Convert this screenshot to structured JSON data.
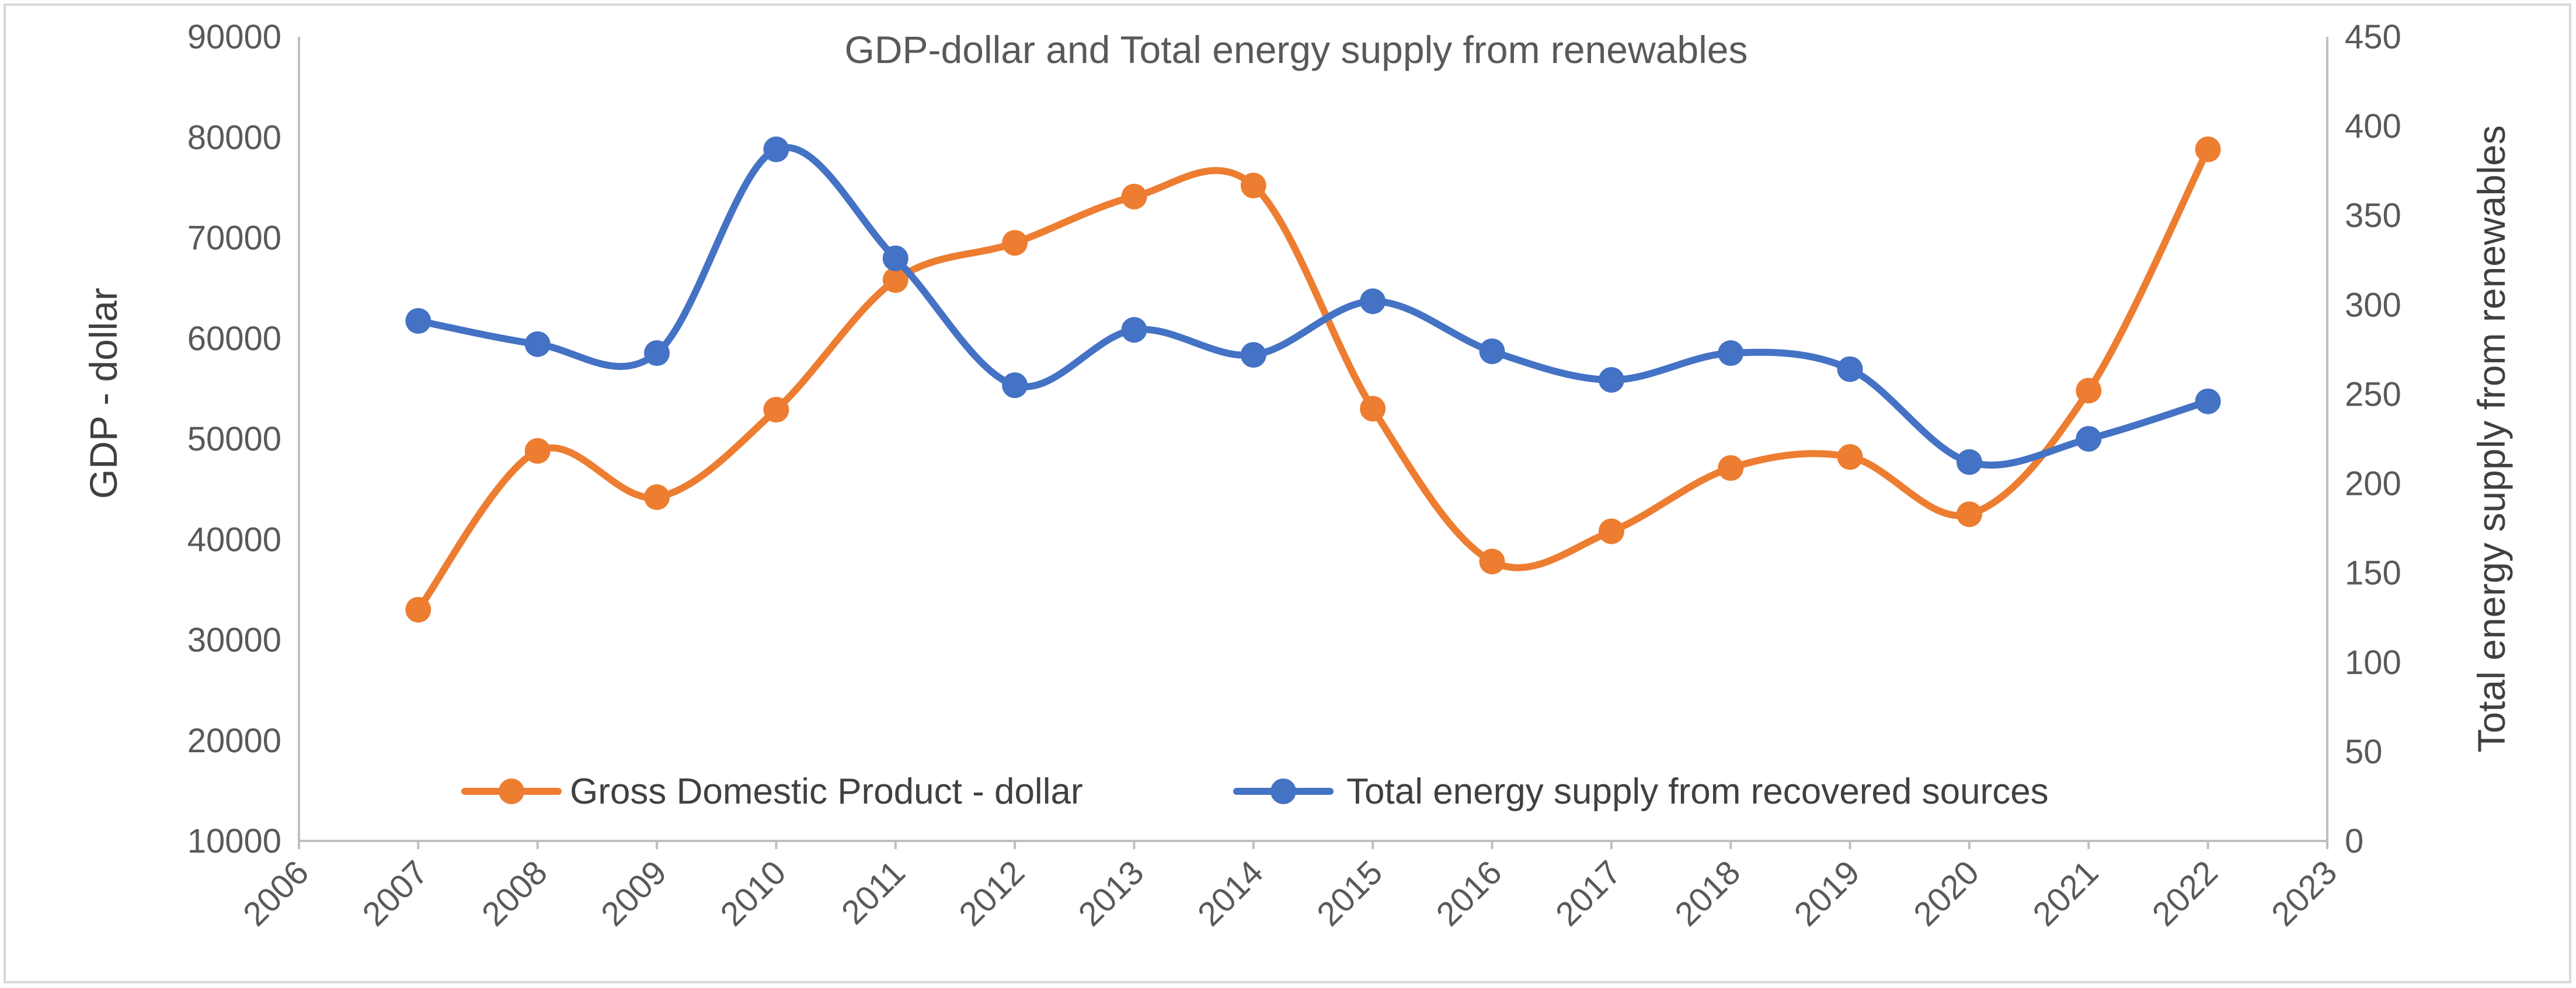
{
  "chart_data": {
    "type": "line",
    "title": "GDP-dollar and Total energy supply from renewables",
    "xlabel": "",
    "ylabel": "GDP - dollar",
    "y2label": "Total energy supply from renewables",
    "xlim": [
      2006,
      2023
    ],
    "ylim": [
      10000,
      90000
    ],
    "y2lim": [
      0,
      450
    ],
    "x_ticks": [
      "2006",
      "2007",
      "2008",
      "2009",
      "2010",
      "2011",
      "2012",
      "2013",
      "2014",
      "2015",
      "2016",
      "2017",
      "2018",
      "2019",
      "2020",
      "2021",
      "2022",
      "2023"
    ],
    "y_ticks": [
      "10000",
      "20000",
      "30000",
      "40000",
      "50000",
      "60000",
      "70000",
      "80000",
      "90000"
    ],
    "y2_ticks": [
      "0",
      "50",
      "100",
      "150",
      "200",
      "250",
      "300",
      "350",
      "400",
      "450"
    ],
    "grid": false,
    "legend_position": "bottom-inside",
    "series": [
      {
        "name": "Gross Domestic Product - dollar",
        "axis": "left",
        "color": "#ed7d31",
        "x": [
          2007,
          2008,
          2009,
          2010,
          2011,
          2012,
          2013,
          2014,
          2015,
          2016,
          2017,
          2018,
          2019,
          2020,
          2021,
          2022
        ],
        "values": [
          33000,
          48800,
          44200,
          52900,
          65800,
          69500,
          74100,
          75200,
          53000,
          37800,
          40800,
          47100,
          48200,
          42500,
          54800,
          78800
        ]
      },
      {
        "name": "Total energy supply from recovered sources",
        "axis": "right",
        "color": "#4472c4",
        "x": [
          2007,
          2008,
          2009,
          2010,
          2011,
          2012,
          2013,
          2014,
          2015,
          2016,
          2017,
          2018,
          2019,
          2020,
          2021,
          2022
        ],
        "values": [
          291,
          278,
          273,
          387,
          326,
          255,
          286,
          272,
          302,
          274,
          258,
          273,
          264,
          212,
          225,
          246
        ]
      }
    ]
  }
}
